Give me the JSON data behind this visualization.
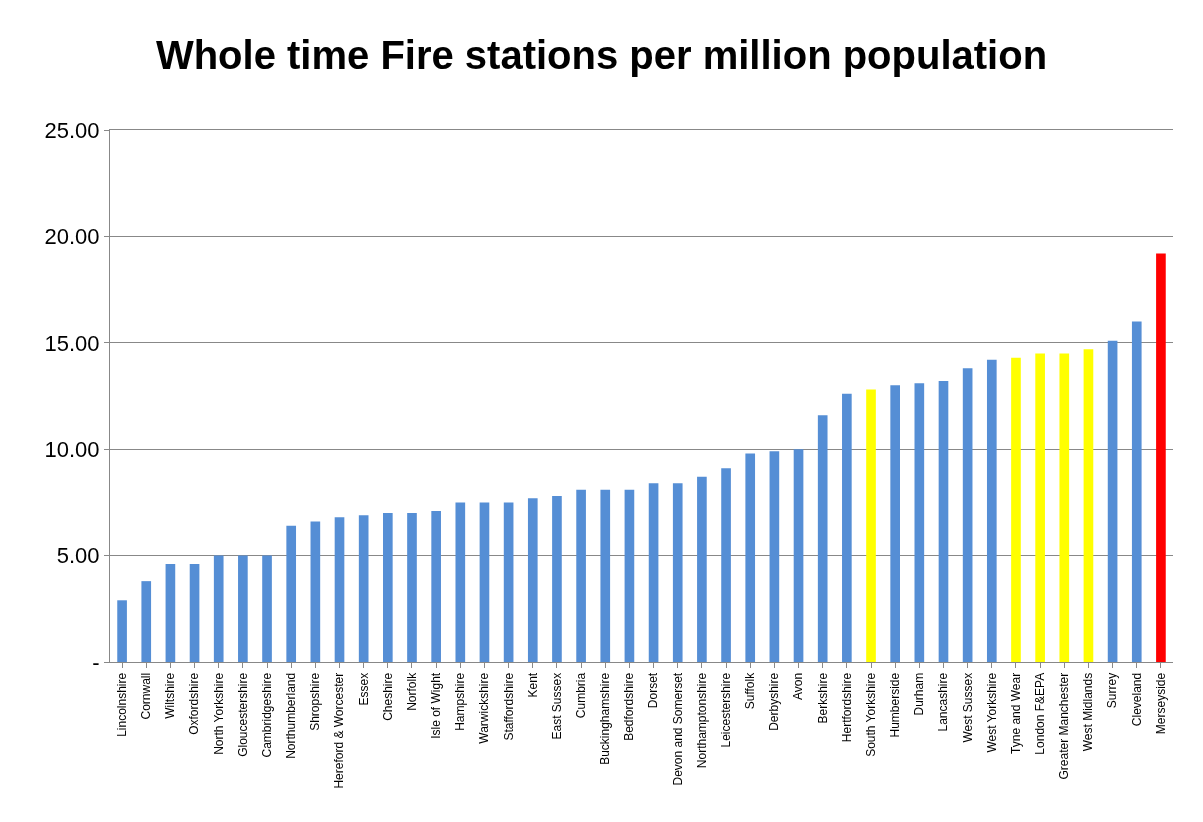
{
  "chart_data": {
    "type": "bar",
    "title": "Whole time Fire stations per million population",
    "categories": [
      "Lincolnshire",
      "Cornwall",
      "Wiltshire",
      "Oxfordshire",
      "North Yorkshire",
      "Gloucestershire",
      "Cambridgeshire",
      "Northumberland",
      "Shropshire",
      "Hereford & Worcester",
      "Essex",
      "Cheshire",
      "Norfolk",
      "Isle of Wight",
      "Hampshire",
      "Warwickshire",
      "Staffordshire",
      "Kent",
      "East Sussex",
      "Cumbria",
      "Buckinghamshire",
      "Bedfordshire",
      "Dorset",
      "Devon and Somerset",
      "Northamptonshire",
      "Leicestershire",
      "Suffolk",
      "Derbyshire",
      "Avon",
      "Berkshire",
      "Hertfordshire",
      "South Yorkshire",
      "Humberside",
      "Durham",
      "Lancashire",
      "West Sussex",
      "West Yorkshire",
      "Tyne and Wear",
      "London F&EPA",
      "Greater Manchester",
      "West Midlands",
      "Surrey",
      "Cleveland",
      "Merseyside"
    ],
    "values": [
      2.9,
      3.8,
      4.6,
      4.6,
      5.0,
      5.0,
      5.0,
      6.4,
      6.6,
      6.8,
      6.9,
      7.0,
      7.0,
      7.1,
      7.5,
      7.5,
      7.5,
      7.7,
      7.8,
      8.1,
      8.1,
      8.1,
      8.4,
      8.4,
      8.7,
      9.1,
      9.8,
      9.9,
      10.0,
      11.6,
      12.6,
      12.8,
      13.0,
      13.1,
      13.2,
      13.8,
      14.2,
      14.3,
      14.5,
      14.5,
      14.7,
      15.1,
      16.0,
      19.2
    ],
    "colors": [
      "#558ed5",
      "#558ed5",
      "#558ed5",
      "#558ed5",
      "#558ed5",
      "#558ed5",
      "#558ed5",
      "#558ed5",
      "#558ed5",
      "#558ed5",
      "#558ed5",
      "#558ed5",
      "#558ed5",
      "#558ed5",
      "#558ed5",
      "#558ed5",
      "#558ed5",
      "#558ed5",
      "#558ed5",
      "#558ed5",
      "#558ed5",
      "#558ed5",
      "#558ed5",
      "#558ed5",
      "#558ed5",
      "#558ed5",
      "#558ed5",
      "#558ed5",
      "#558ed5",
      "#558ed5",
      "#558ed5",
      "#ffff00",
      "#558ed5",
      "#558ed5",
      "#558ed5",
      "#558ed5",
      "#558ed5",
      "#ffff00",
      "#ffff00",
      "#ffff00",
      "#ffff00",
      "#558ed5",
      "#558ed5",
      "#ff0000"
    ],
    "ylim": [
      0,
      25
    ],
    "yticks": [
      {
        "value": 0,
        "label": "-"
      },
      {
        "value": 5,
        "label": "5.00"
      },
      {
        "value": 10,
        "label": "10.00"
      },
      {
        "value": 15,
        "label": "15.00"
      },
      {
        "value": 20,
        "label": "20.00"
      },
      {
        "value": 25,
        "label": "25.00"
      }
    ],
    "grid": "y"
  }
}
